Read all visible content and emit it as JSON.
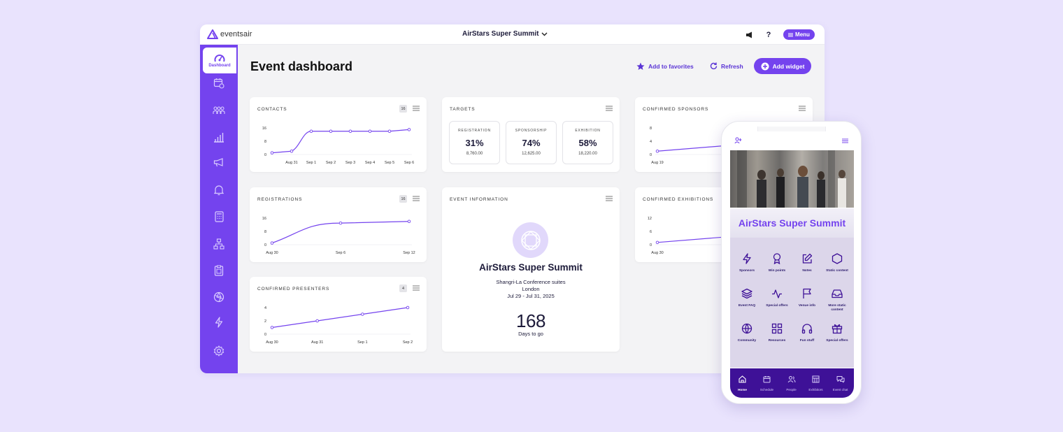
{
  "brand": {
    "logo_text": "eventsair"
  },
  "topbar": {
    "event_name": "AirStars Super Summit",
    "menu_label": "Menu"
  },
  "sidebar": {
    "active_label": "Dashboard"
  },
  "page": {
    "title": "Event dashboard"
  },
  "actions": {
    "favorites": "Add to favorites",
    "refresh": "Refresh",
    "add_widget": "Add widget"
  },
  "cards": {
    "contacts": {
      "title": "CONTACTS",
      "badge": "16"
    },
    "registrations": {
      "title": "REGISTRATIONS",
      "badge": "16"
    },
    "presenters": {
      "title": "CONFIRMED PRESENTERS",
      "badge": "4"
    },
    "targets": {
      "title": "TARGETS",
      "items": [
        {
          "label": "REGISTRATION",
          "percent": "31%",
          "value": "8,760.00"
        },
        {
          "label": "SPONSORSHIP",
          "percent": "74%",
          "value": "12,625.00"
        },
        {
          "label": "EXHIBITION",
          "percent": "58%",
          "value": "18,220.00"
        }
      ]
    },
    "info": {
      "title": "EVENT INFORMATION",
      "event_name": "AirStars Super Summit",
      "venue": "Shangri-La Conference suites",
      "city": "London",
      "dates": "Jul 29 - Jul 31, 2025",
      "days": "168",
      "days_label": "Days to go"
    },
    "sponsors": {
      "title": "CONFIRMED SPONSORS"
    },
    "exhibitions": {
      "title": "CONFIRMED EXHIBITIONS"
    }
  },
  "chart_data": [
    {
      "type": "line",
      "name": "contacts",
      "x": [
        "",
        "Aug 31",
        "Sep 1",
        "Sep 2",
        "Sep 3",
        "Sep 4",
        "Sep 5",
        "Sep 6"
      ],
      "values": [
        1,
        2,
        14,
        14,
        14,
        14,
        14,
        15
      ],
      "yticks": [
        "16",
        "8",
        "0"
      ],
      "ylim": [
        0,
        16
      ]
    },
    {
      "type": "line",
      "name": "registrations",
      "x": [
        "Aug 30",
        "Sep 6",
        "Sep 12"
      ],
      "values": [
        1,
        13,
        14
      ],
      "yticks": [
        "16",
        "8",
        "0"
      ],
      "ylim": [
        0,
        16
      ]
    },
    {
      "type": "line",
      "name": "presenters",
      "x": [
        "Aug 30",
        "Aug 31",
        "Sep 1",
        "Sep 2"
      ],
      "values": [
        1,
        2,
        3,
        4
      ],
      "yticks": [
        "4",
        "2",
        "0"
      ],
      "ylim": [
        0,
        4
      ]
    },
    {
      "type": "line",
      "name": "sponsors",
      "x": [
        "Aug 19"
      ],
      "values": [
        1
      ],
      "yticks": [
        "8",
        "4",
        "0"
      ],
      "ylim": [
        0,
        8
      ]
    },
    {
      "type": "line",
      "name": "exhibitions",
      "x": [
        "Aug 30"
      ],
      "values": [
        1
      ],
      "yticks": [
        "12",
        "6",
        "0"
      ],
      "ylim": [
        0,
        12
      ]
    }
  ],
  "phone": {
    "title": "AirStars Super Summit",
    "grid": [
      {
        "label": "Sponsors",
        "icon": "lightning-icon"
      },
      {
        "label": "Win points",
        "icon": "award-icon"
      },
      {
        "label": "Notes",
        "icon": "edit-icon"
      },
      {
        "label": "Static content",
        "icon": "hexagon-icon"
      },
      {
        "label": "Event FAQ",
        "icon": "layers-icon"
      },
      {
        "label": "Special offers",
        "icon": "activity-icon"
      },
      {
        "label": "Venue info",
        "icon": "flag-icon"
      },
      {
        "label": "More static content",
        "icon": "inbox-icon"
      },
      {
        "label": "Community",
        "icon": "globe-icon"
      },
      {
        "label": "Resources",
        "icon": "grid-icon"
      },
      {
        "label": "Fun stuff",
        "icon": "headphones-icon"
      },
      {
        "label": "Special offers",
        "icon": "gift-icon"
      }
    ],
    "tabs": [
      {
        "label": "Home"
      },
      {
        "label": "Schedule"
      },
      {
        "label": "People"
      },
      {
        "label": "Exhibitors"
      },
      {
        "label": "Event chat"
      }
    ]
  },
  "colors": {
    "accent": "#7443ee",
    "dark_accent": "#3e1197",
    "background": "#e9e3fd"
  }
}
